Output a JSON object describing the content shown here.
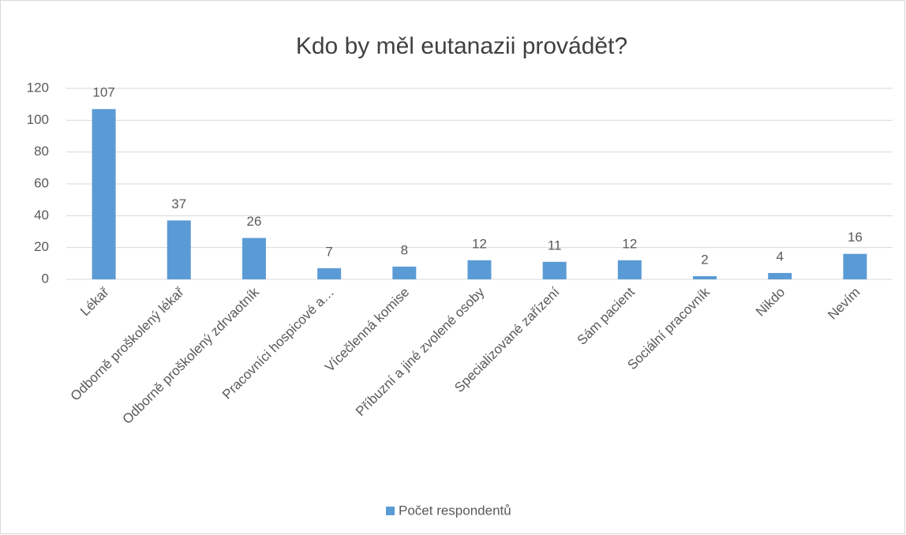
{
  "chart_data": {
    "type": "bar",
    "title": "Kdo by měl eutanazii provádět?",
    "categories": [
      "Lékař",
      "Odborně proškolený lékař",
      "Odborně proškolený zdrvaotník",
      "Pracovníci hospicové a…",
      "Vícečlenná komise",
      "Příbuzní a jiné zvolené osoby",
      "Specializované zařízení",
      "Sám pacient",
      "Sociální pracovník",
      "Nikdo",
      "Nevím"
    ],
    "series": [
      {
        "name": "Počet respondentů",
        "color": "#5b9bd5",
        "values": [
          107,
          37,
          26,
          7,
          8,
          12,
          11,
          12,
          2,
          4,
          16
        ]
      }
    ],
    "ylim": [
      0,
      120
    ],
    "yticks": [
      0,
      20,
      40,
      60,
      80,
      100,
      120
    ],
    "grid": true,
    "legend": "bottom"
  }
}
